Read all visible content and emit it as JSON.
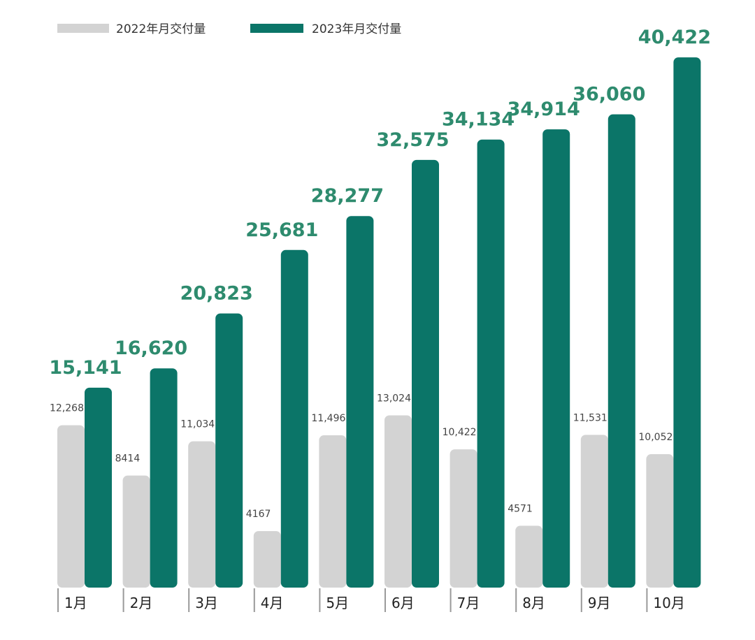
{
  "chart_data": {
    "type": "bar",
    "categories": [
      "1月",
      "2月",
      "3月",
      "4月",
      "5月",
      "6月",
      "7月",
      "8月",
      "9月",
      "10月"
    ],
    "series": [
      {
        "name": "2022年月交付量",
        "values": [
          12268,
          8414,
          11034,
          4167,
          11496,
          13024,
          10422,
          4571,
          11531,
          10052
        ],
        "labels": [
          "12,268",
          "8414",
          "11,034",
          "4167",
          "11,496",
          "13,024",
          "10,422",
          "4571",
          "11,531",
          "10,052"
        ],
        "color": "#d3d3d3"
      },
      {
        "name": "2023年月交付量",
        "values": [
          15141,
          16620,
          20823,
          25681,
          28277,
          32575,
          34134,
          34914,
          36060,
          40422
        ],
        "labels": [
          "15,141",
          "16,620",
          "20,823",
          "25,681",
          "28,277",
          "32,575",
          "34,134",
          "34,914",
          "36,060",
          "40,422"
        ],
        "color": "#0b7568",
        "label_color": "#2e8b6e"
      }
    ],
    "ylim": [
      0,
      42000
    ],
    "grid": false,
    "legend": "top-left",
    "title": "",
    "xlabel": "",
    "ylabel": ""
  }
}
